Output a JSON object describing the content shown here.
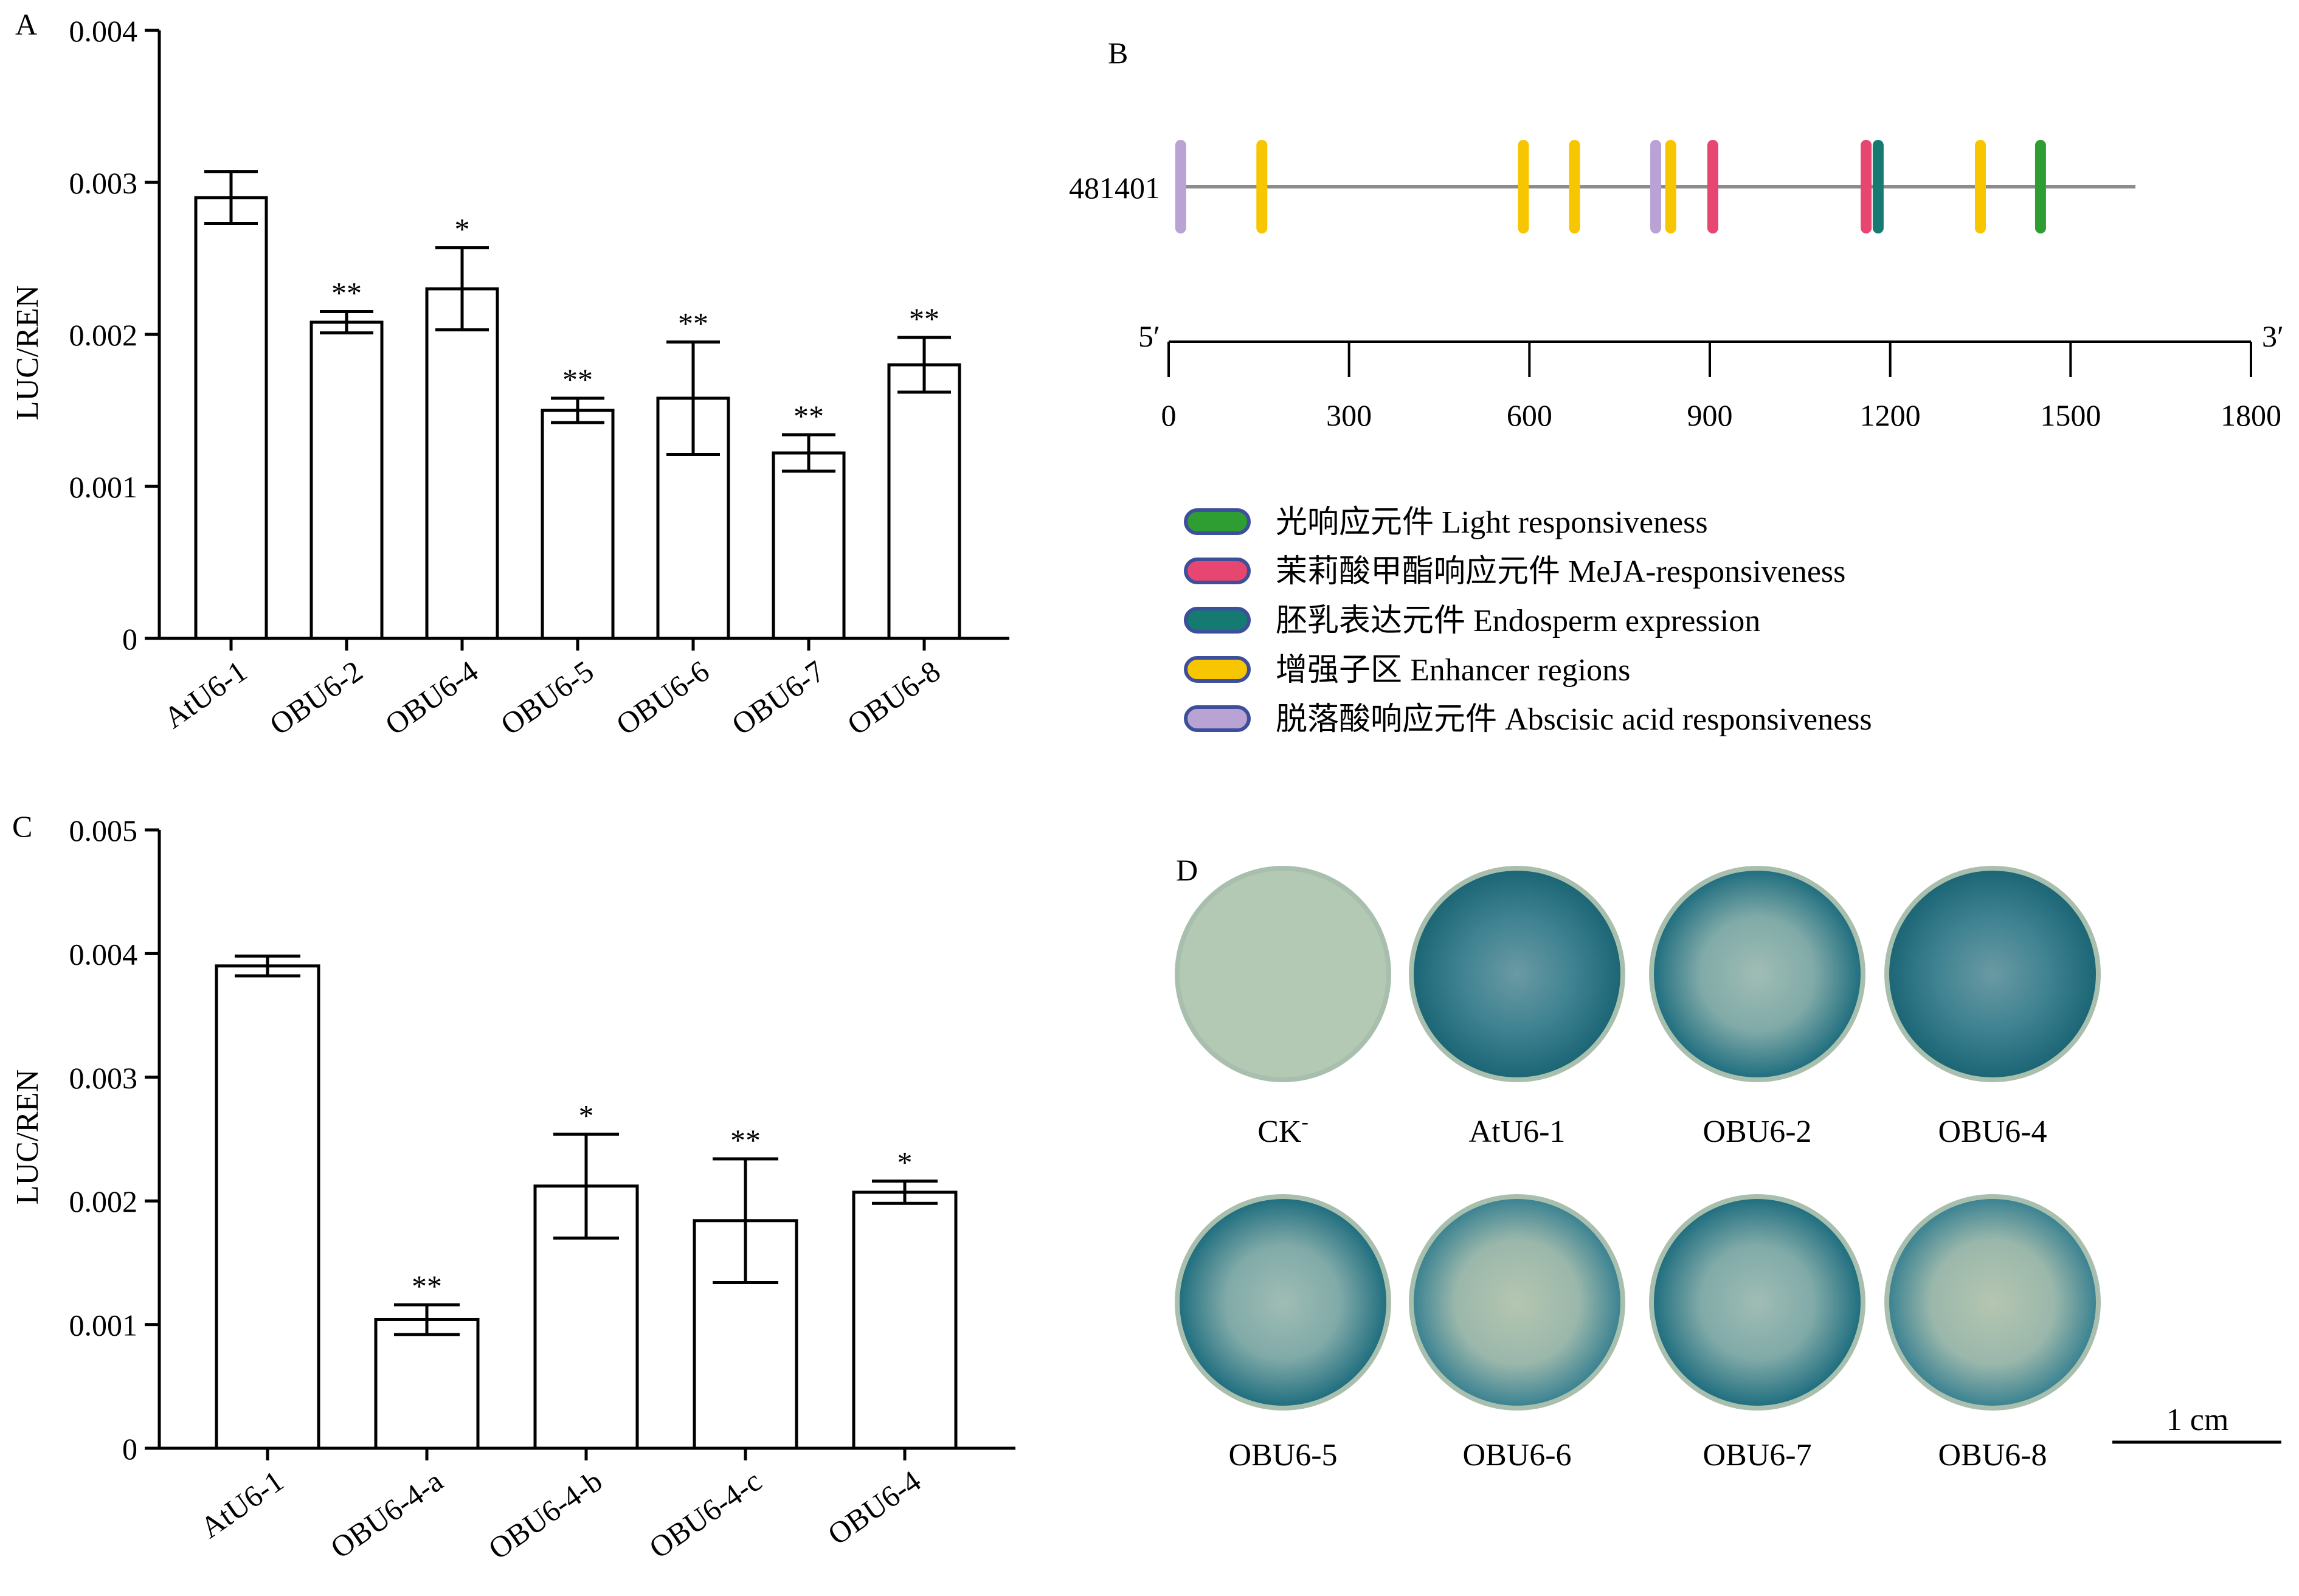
{
  "panels": {
    "A": {
      "label": "A",
      "chart_data": {
        "type": "bar",
        "categories": [
          "AtU6-1",
          "OBU6-2",
          "OBU6-4",
          "OBU6-5",
          "OBU6-6",
          "OBU6-7",
          "OBU6-8"
        ],
        "values": [
          0.0029,
          0.00208,
          0.0023,
          0.0015,
          0.00158,
          0.00122,
          0.0018
        ],
        "errors": [
          0.00017,
          7e-05,
          0.00027,
          8e-05,
          0.00037,
          0.00012,
          0.00018
        ],
        "significance": [
          "",
          "**",
          "*",
          "**",
          "**",
          "**",
          "**"
        ],
        "ylabel": "LUC/REN",
        "ylim": [
          0,
          0.004
        ],
        "yticks": [
          "0",
          "0.001",
          "0.002",
          "0.003",
          "0.004"
        ]
      }
    },
    "B": {
      "label": "B",
      "chart_data": {
        "type": "diagram",
        "sequence_name": "481401",
        "sequence_length": 1600,
        "axis_start_label": "5′",
        "axis_end_label": "3′",
        "xlim": [
          0,
          1800
        ],
        "xticks": [
          "0",
          "300",
          "600",
          "900",
          "1200",
          "1500",
          "1800"
        ],
        "elements": [
          {
            "pos": 20,
            "type": "abscisic"
          },
          {
            "pos": 155,
            "type": "enhancer"
          },
          {
            "pos": 590,
            "type": "enhancer"
          },
          {
            "pos": 675,
            "type": "enhancer"
          },
          {
            "pos": 810,
            "type": "abscisic"
          },
          {
            "pos": 835,
            "type": "enhancer"
          },
          {
            "pos": 905,
            "type": "meja"
          },
          {
            "pos": 1160,
            "type": "meja"
          },
          {
            "pos": 1180,
            "type": "endosperm"
          },
          {
            "pos": 1350,
            "type": "enhancer"
          },
          {
            "pos": 1450,
            "type": "light"
          }
        ],
        "legend": [
          {
            "type": "light",
            "text": "光响应元件 Light responsiveness",
            "color": "#2e9e33"
          },
          {
            "type": "meja",
            "text": "茉莉酸甲酯响应元件 MeJA-responsiveness",
            "color": "#e6466f"
          },
          {
            "type": "endosperm",
            "text": "胚乳表达元件 Endosperm expression",
            "color": "#147a72"
          },
          {
            "type": "enhancer",
            "text": "增强子区 Enhancer regions",
            "color": "#f7c600"
          },
          {
            "type": "abscisic",
            "text": "脱落酸响应元件 Abscisic acid responsiveness",
            "color": "#b9a2d4"
          }
        ],
        "legend_border_color": "#3d4f9a"
      }
    },
    "C": {
      "label": "C",
      "chart_data": {
        "type": "bar",
        "categories": [
          "AtU6-1",
          "OBU6-4-a",
          "OBU6-4-b",
          "OBU6-4-c",
          "OBU6-4"
        ],
        "values": [
          0.0039,
          0.00104,
          0.00212,
          0.00184,
          0.00207
        ],
        "errors": [
          8e-05,
          0.00012,
          0.00042,
          0.0005,
          9e-05
        ],
        "significance": [
          "",
          "**",
          "*",
          "**",
          "*"
        ],
        "ylabel": "LUC/REN",
        "ylim": [
          0,
          0.005
        ],
        "yticks": [
          "0",
          "0.001",
          "0.002",
          "0.003",
          "0.004",
          "0.005"
        ]
      }
    },
    "D": {
      "label": "D",
      "plates": [
        {
          "label": "CK",
          "sup": "-",
          "stain": "none"
        },
        {
          "label": "AtU6-1",
          "stain": "strong"
        },
        {
          "label": "OBU6-2",
          "stain": "medium"
        },
        {
          "label": "OBU6-4",
          "stain": "strong"
        },
        {
          "label": "OBU6-5",
          "stain": "medium"
        },
        {
          "label": "OBU6-6",
          "stain": "light"
        },
        {
          "label": "OBU6-7",
          "stain": "medium"
        },
        {
          "label": "OBU6-8",
          "stain": "light"
        }
      ],
      "scale_bar": "1 cm",
      "colors": {
        "control": "#b4c9b3",
        "stain": "#1d6e80",
        "plate_base": "#a9bfae"
      }
    }
  }
}
